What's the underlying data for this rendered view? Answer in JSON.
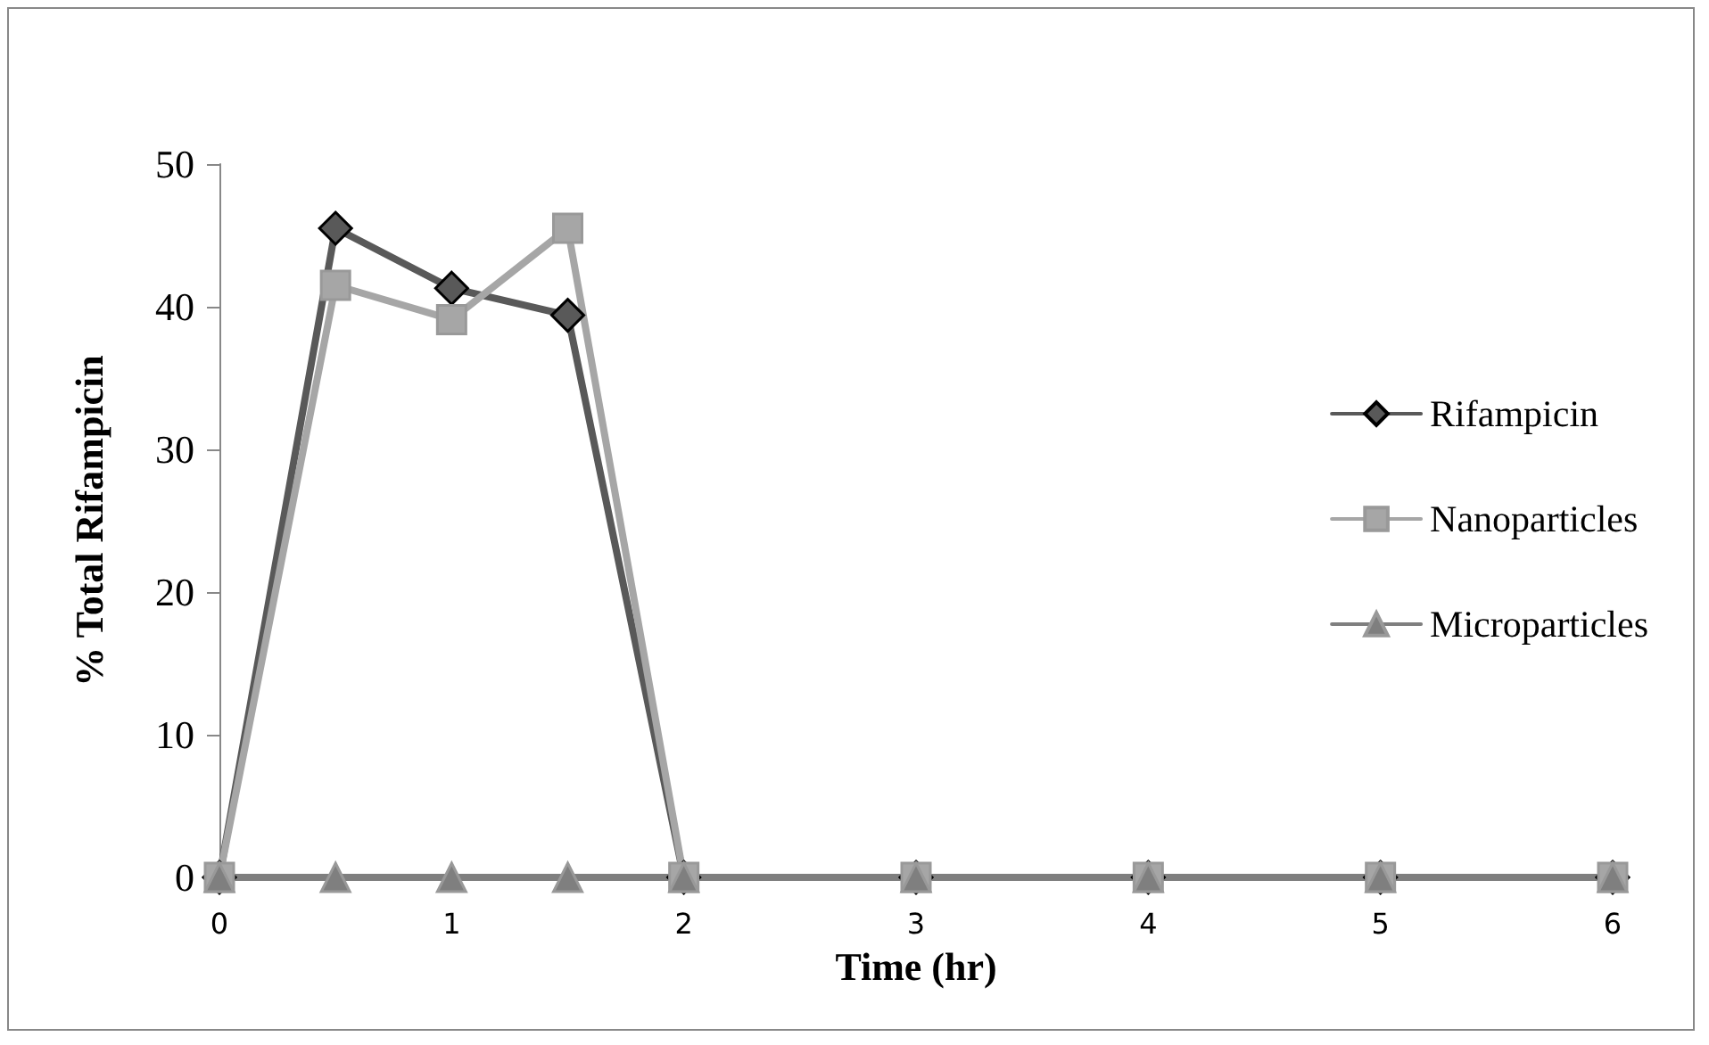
{
  "chart_data": {
    "type": "line",
    "xlabel": "Time (hr)",
    "ylabel": "% Total Rifampicin",
    "x": [
      0,
      0.5,
      1,
      1.5,
      2,
      3,
      4,
      5,
      6
    ],
    "series": [
      {
        "name": "Rifampicin",
        "color": "#595959",
        "marker": "diamond",
        "values": [
          0,
          45.5,
          41.3,
          39.4,
          0,
          0,
          0,
          0,
          0
        ]
      },
      {
        "name": "Nanoparticles",
        "color": "#a6a6a6",
        "marker": "square",
        "values": [
          0,
          41.5,
          39.1,
          45.5,
          0,
          0,
          0,
          0,
          0
        ]
      },
      {
        "name": "Microparticles",
        "color": "#7f7f7f",
        "marker": "triangle",
        "values": [
          0,
          0,
          0,
          0,
          0,
          0,
          0,
          0,
          0
        ]
      }
    ],
    "xlim": [
      0,
      6
    ],
    "xticks": [
      0,
      1,
      2,
      3,
      4,
      5,
      6
    ],
    "ylim": [
      0,
      50
    ],
    "yticks": [
      0,
      10,
      20,
      30,
      40,
      50
    ],
    "grid": false,
    "legend": "right",
    "line_style": "solid"
  }
}
